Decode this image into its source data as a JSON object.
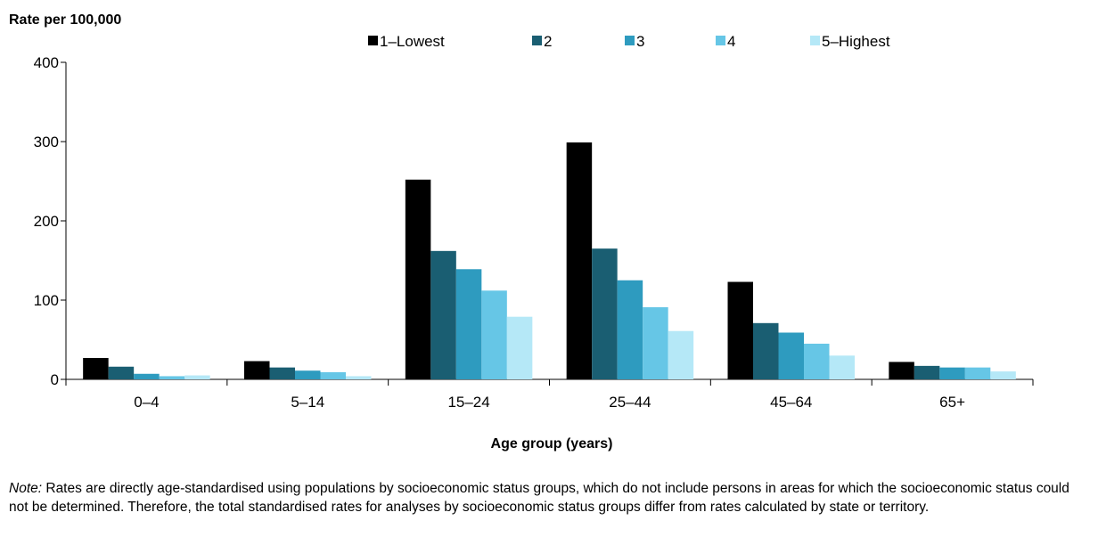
{
  "chart_data": {
    "type": "bar",
    "ylabel": "Rate per 100,000",
    "xlabel": "Age group (years)",
    "ylim": [
      0,
      400
    ],
    "yticks": [
      0,
      100,
      200,
      300,
      400
    ],
    "grid": false,
    "legend_position": "top",
    "categories": [
      "0–4",
      "5–14",
      "15–24",
      "25–44",
      "45–64",
      "65+"
    ],
    "series": [
      {
        "name": "1–Lowest",
        "color": "#000000",
        "values": [
          27,
          23,
          252,
          299,
          123,
          22
        ]
      },
      {
        "name": "2",
        "color": "#1a5e72",
        "values": [
          16,
          15,
          162,
          165,
          71,
          17
        ]
      },
      {
        "name": "3",
        "color": "#2e9bbf",
        "values": [
          7,
          11,
          139,
          125,
          59,
          15
        ]
      },
      {
        "name": "4",
        "color": "#66c6e6",
        "values": [
          4,
          9,
          112,
          91,
          45,
          15
        ]
      },
      {
        "name": "5–Highest",
        "color": "#b5e8f7",
        "values": [
          5,
          4,
          79,
          61,
          30,
          10
        ]
      }
    ]
  },
  "note": {
    "label": "Note:",
    "text": " Rates are directly age-standardised using populations by socioeconomic status groups, which do not include persons in areas for which the socioeconomic status could not be determined. Therefore, the total standardised rates for analyses by socioeconomic status groups differ from rates calculated by state or territory."
  }
}
